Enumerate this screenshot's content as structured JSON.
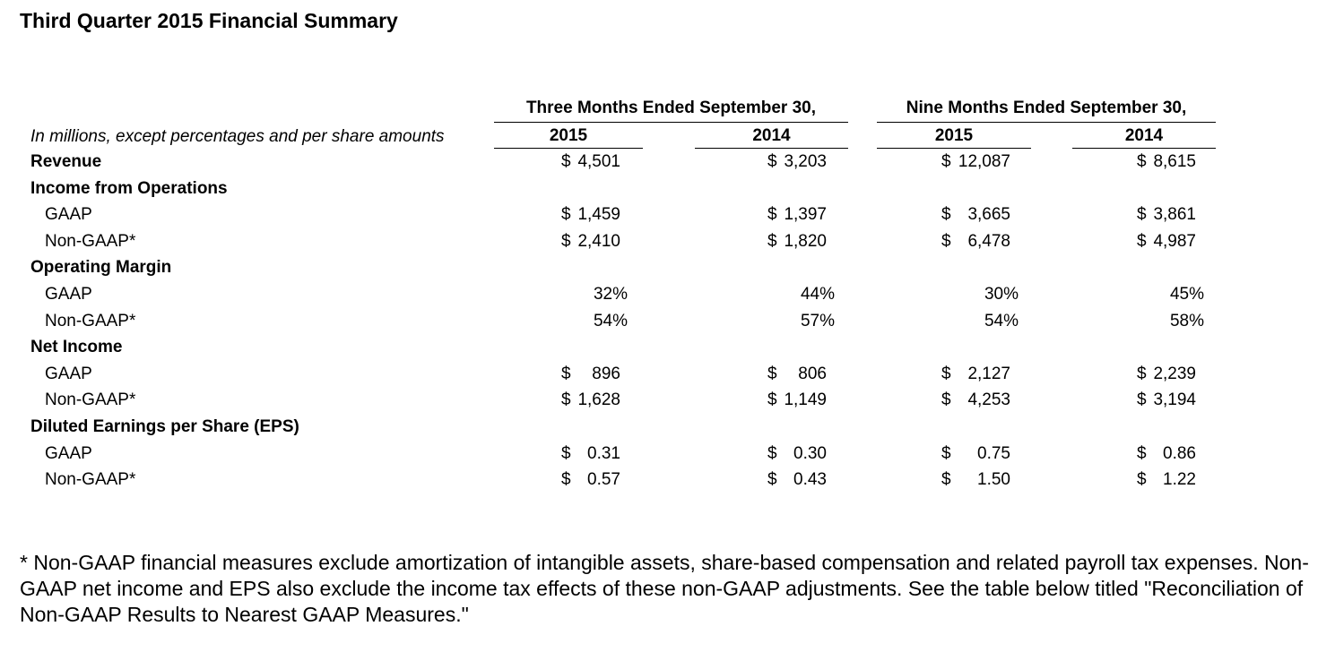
{
  "title": "Third Quarter 2015 Financial Summary",
  "header": {
    "group_three_months": "Three Months Ended September 30,",
    "group_nine_months": "Nine Months Ended September 30,",
    "years": [
      "2015",
      "2014",
      "2015",
      "2014"
    ],
    "unit_note": "In millions, except percentages and per share amounts"
  },
  "rows": [
    {
      "label": "Revenue",
      "style": "bold",
      "cells": [
        [
          "$",
          "4,501"
        ],
        [
          "$",
          "3,203"
        ],
        [
          "$",
          "12,087"
        ],
        [
          "$",
          "8,615"
        ]
      ]
    },
    {
      "label": "Income from Operations",
      "style": "bold",
      "cells": []
    },
    {
      "label": "GAAP",
      "style": "sub",
      "cells": [
        [
          "$",
          "1,459"
        ],
        [
          "$",
          "1,397"
        ],
        [
          "$",
          "3,665"
        ],
        [
          "$",
          "3,861"
        ]
      ]
    },
    {
      "label": "Non-GAAP*",
      "style": "sub",
      "cells": [
        [
          "$",
          "2,410"
        ],
        [
          "$",
          "1,820"
        ],
        [
          "$",
          "6,478"
        ],
        [
          "$",
          "4,987"
        ]
      ]
    },
    {
      "label": "Operating Margin",
      "style": "bold",
      "cells": []
    },
    {
      "label": "GAAP",
      "style": "sub",
      "cells": [
        [
          "",
          "32%"
        ],
        [
          "",
          "44%"
        ],
        [
          "",
          "30%"
        ],
        [
          "",
          "45%"
        ]
      ]
    },
    {
      "label": "Non-GAAP*",
      "style": "sub",
      "cells": [
        [
          "",
          "54%"
        ],
        [
          "",
          "57%"
        ],
        [
          "",
          "54%"
        ],
        [
          "",
          "58%"
        ]
      ]
    },
    {
      "label": "Net Income",
      "style": "bold",
      "cells": []
    },
    {
      "label": "GAAP",
      "style": "sub",
      "cells": [
        [
          "$",
          "896"
        ],
        [
          "$",
          "806"
        ],
        [
          "$",
          "2,127"
        ],
        [
          "$",
          "2,239"
        ]
      ]
    },
    {
      "label": "Non-GAAP*",
      "style": "sub",
      "cells": [
        [
          "$",
          "1,628"
        ],
        [
          "$",
          "1,149"
        ],
        [
          "$",
          "4,253"
        ],
        [
          "$",
          "3,194"
        ]
      ]
    },
    {
      "label": "Diluted Earnings per Share (EPS)",
      "style": "bold",
      "cells": []
    },
    {
      "label": "GAAP",
      "style": "sub",
      "cells": [
        [
          "$",
          "0.31"
        ],
        [
          "$",
          "0.30"
        ],
        [
          "$",
          "0.75"
        ],
        [
          "$",
          "0.86"
        ]
      ]
    },
    {
      "label": "Non-GAAP*",
      "style": "sub",
      "cells": [
        [
          "$",
          "0.57"
        ],
        [
          "$",
          "0.43"
        ],
        [
          "$",
          "1.50"
        ],
        [
          "$",
          "1.22"
        ]
      ]
    }
  ],
  "footnote": "* Non-GAAP financial measures exclude amortization of intangible assets, share-based compensation and related payroll tax expenses. Non-GAAP net income and EPS also exclude the income tax effects of these non-GAAP adjustments. See the table below titled \"Reconciliation of Non-GAAP Results to Nearest GAAP Measures.\""
}
